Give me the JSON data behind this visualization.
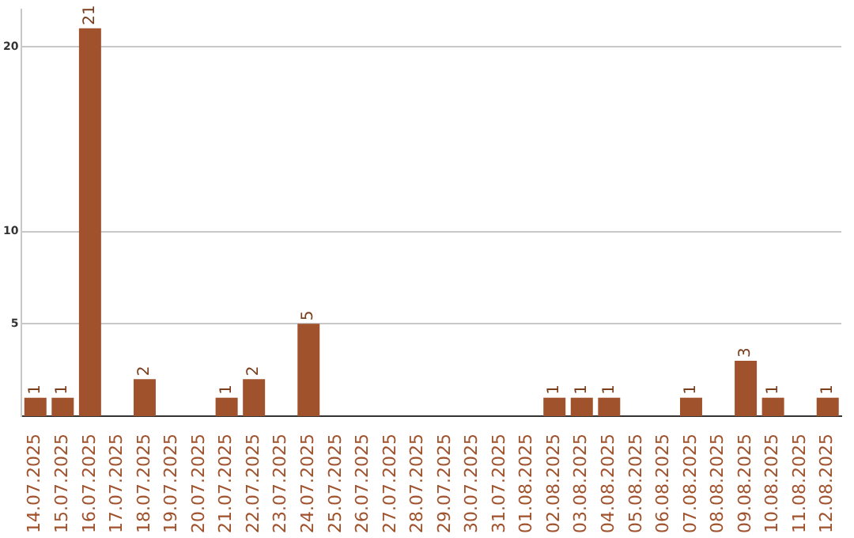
{
  "chart_data": {
    "type": "bar",
    "categories": [
      "14.07.2025",
      "15.07.2025",
      "16.07.2025",
      "17.07.2025",
      "18.07.2025",
      "19.07.2025",
      "20.07.2025",
      "21.07.2025",
      "22.07.2025",
      "23.07.2025",
      "24.07.2025",
      "25.07.2025",
      "26.07.2025",
      "27.07.2025",
      "28.07.2025",
      "29.07.2025",
      "30.07.2025",
      "31.07.2025",
      "01.08.2025",
      "02.08.2025",
      "03.08.2025",
      "04.08.2025",
      "05.08.2025",
      "06.08.2025",
      "07.08.2025",
      "08.08.2025",
      "09.08.2025",
      "10.08.2025",
      "11.08.2025",
      "12.08.2025"
    ],
    "values": [
      1,
      1,
      21,
      0,
      2,
      0,
      0,
      1,
      2,
      0,
      5,
      0,
      0,
      0,
      0,
      0,
      0,
      0,
      0,
      1,
      1,
      1,
      0,
      0,
      1,
      0,
      3,
      1,
      0,
      1
    ],
    "value_labels": [
      "1",
      "1",
      "21",
      null,
      "2",
      null,
      null,
      "1",
      "2",
      null,
      "5",
      null,
      null,
      null,
      null,
      null,
      null,
      null,
      null,
      "1",
      "1",
      "1",
      null,
      null,
      "1",
      null,
      "3",
      "1",
      null,
      "1"
    ],
    "color": "#a0522d",
    "ylim": [
      0,
      22
    ],
    "yticks": [
      5,
      10,
      20
    ],
    "grid": "y"
  }
}
